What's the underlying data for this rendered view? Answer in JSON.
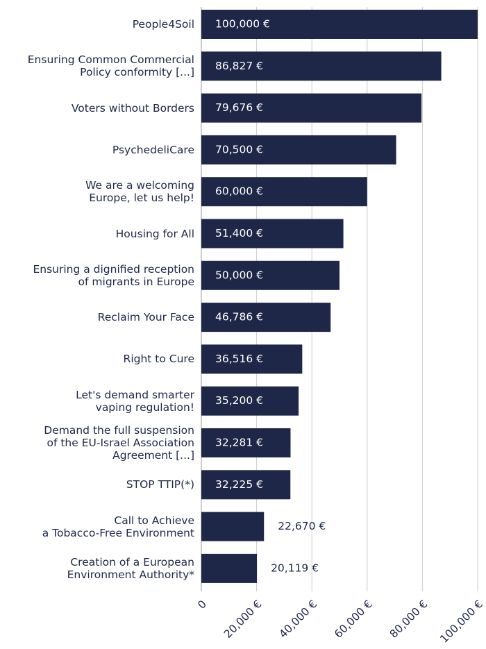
{
  "chart_data": {
    "type": "bar",
    "orientation": "horizontal",
    "categories": [
      "People4Soil",
      "Ensuring Common Commercial\nPolicy conformity [...]",
      "Voters without Borders",
      "PsychedeliCare",
      "We are a welcoming\nEurope, let us help!",
      "Housing for All",
      "Ensuring a dignified reception\nof migrants in Europe",
      "Reclaim Your Face",
      "Right to Cure",
      "Let's demand smarter\nvaping regulation!",
      "Demand the full suspension\nof the EU-Israel Association\nAgreement [...]",
      "STOP TTIP(*)",
      "Call to Achieve\na Tobacco-Free Environment",
      "Creation of a European\nEnvironment Authority*"
    ],
    "values": [
      100000,
      86827,
      79676,
      70500,
      60000,
      51400,
      50000,
      46786,
      36516,
      35200,
      32281,
      32225,
      22670,
      20119
    ],
    "value_labels": [
      "100,000 €",
      "86,827 €",
      "79,676 €",
      "70,500 €",
      "60,000 €",
      "51,400 €",
      "50,000 €",
      "46,786 €",
      "36,516 €",
      "35,200 €",
      "32,281 €",
      "32,225 €",
      "22,670 €",
      "20,119 €"
    ],
    "color": "#1e2747",
    "xlim": [
      0,
      100000
    ],
    "xticks": [
      0,
      {
        "value": 20000,
        "label": "20,000 €"
      },
      {
        "value": 40000,
        "label": "40,000 €"
      },
      {
        "value": 60000,
        "label": "60,000 €"
      },
      {
        "value": 80000,
        "label": "80,000 €"
      },
      {
        "value": 100000,
        "label": "100,000 €"
      }
    ],
    "grid": true
  }
}
